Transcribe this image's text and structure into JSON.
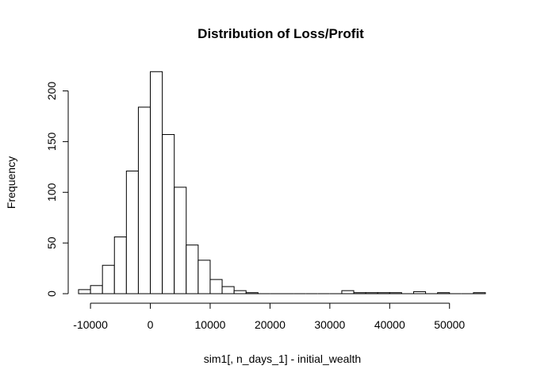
{
  "chart_data": {
    "type": "bar",
    "title": "Distribution of Loss/Profit",
    "xlabel": "sim1[, n_days_1] - initial_wealth",
    "ylabel": "Frequency",
    "bin_width": 2000,
    "xlim": [
      -12000,
      56000
    ],
    "ylim": [
      0,
      220
    ],
    "x_ticks": [
      -10000,
      0,
      10000,
      20000,
      30000,
      40000,
      50000
    ],
    "x_tick_labels": [
      "-10000",
      "0",
      "10000",
      "20000",
      "30000",
      "40000",
      "50000"
    ],
    "y_ticks": [
      0,
      50,
      100,
      150,
      200
    ],
    "y_tick_labels": [
      "0",
      "50",
      "100",
      "150",
      "200"
    ],
    "bins": [
      {
        "from": -12000,
        "to": -10000,
        "count": 4
      },
      {
        "from": -10000,
        "to": -8000,
        "count": 8
      },
      {
        "from": -8000,
        "to": -6000,
        "count": 28
      },
      {
        "from": -6000,
        "to": -4000,
        "count": 56
      },
      {
        "from": -4000,
        "to": -2000,
        "count": 121
      },
      {
        "from": -2000,
        "to": 0,
        "count": 184
      },
      {
        "from": 0,
        "to": 2000,
        "count": 219
      },
      {
        "from": 2000,
        "to": 4000,
        "count": 157
      },
      {
        "from": 4000,
        "to": 6000,
        "count": 105
      },
      {
        "from": 6000,
        "to": 8000,
        "count": 48
      },
      {
        "from": 8000,
        "to": 10000,
        "count": 33
      },
      {
        "from": 10000,
        "to": 12000,
        "count": 14
      },
      {
        "from": 12000,
        "to": 14000,
        "count": 7
      },
      {
        "from": 14000,
        "to": 16000,
        "count": 3
      },
      {
        "from": 16000,
        "to": 18000,
        "count": 1
      },
      {
        "from": 18000,
        "to": 20000,
        "count": 0
      },
      {
        "from": 20000,
        "to": 22000,
        "count": 0
      },
      {
        "from": 22000,
        "to": 24000,
        "count": 0
      },
      {
        "from": 24000,
        "to": 26000,
        "count": 0
      },
      {
        "from": 26000,
        "to": 28000,
        "count": 0
      },
      {
        "from": 28000,
        "to": 30000,
        "count": 0
      },
      {
        "from": 30000,
        "to": 32000,
        "count": 0
      },
      {
        "from": 32000,
        "to": 34000,
        "count": 3
      },
      {
        "from": 34000,
        "to": 36000,
        "count": 1
      },
      {
        "from": 36000,
        "to": 38000,
        "count": 1
      },
      {
        "from": 38000,
        "to": 40000,
        "count": 1
      },
      {
        "from": 40000,
        "to": 42000,
        "count": 1
      },
      {
        "from": 42000,
        "to": 44000,
        "count": 0
      },
      {
        "from": 44000,
        "to": 46000,
        "count": 2
      },
      {
        "from": 46000,
        "to": 48000,
        "count": 0
      },
      {
        "from": 48000,
        "to": 50000,
        "count": 1
      },
      {
        "from": 50000,
        "to": 52000,
        "count": 0
      },
      {
        "from": 52000,
        "to": 54000,
        "count": 0
      },
      {
        "from": 54000,
        "to": 56000,
        "count": 1
      }
    ]
  }
}
